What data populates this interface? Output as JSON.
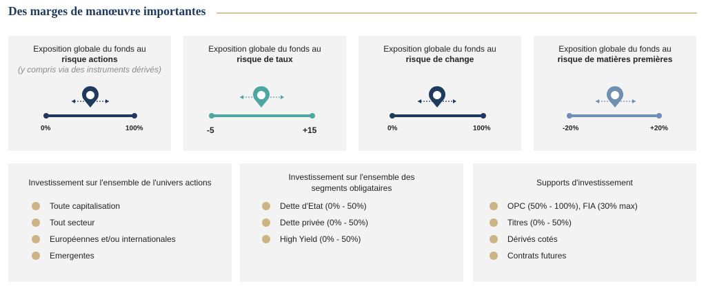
{
  "page": {
    "title": "Des marges de manœuvre importantes"
  },
  "colors": {
    "navy": "#1f3a5c",
    "teal": "#4ea6a1",
    "steel": "#6f8fb0",
    "gold": "#ccb484",
    "card_bg": "#f3f3f3",
    "rule": "#d8c39e"
  },
  "exposures": [
    {
      "line1": "Exposition globale du fonds au",
      "line2": "risque actions",
      "line3": "(y compris via des instruments dérivés)",
      "min": "0%",
      "max": "100%",
      "color": "#1f3a5c"
    },
    {
      "line1": "Exposition globale du fonds au",
      "line2": "risque de taux",
      "min": "-5",
      "max": "+15",
      "color": "#4ea6a1"
    },
    {
      "line1": "Exposition globale du fonds au",
      "line2": "risque de change",
      "min": "0%",
      "max": "100%",
      "color": "#1f3a5c"
    },
    {
      "line1": "Exposition globale du fonds au",
      "line2": "risque de matières premières",
      "min": "-20%",
      "max": "+20%",
      "color": "#6f8fb0"
    }
  ],
  "lists": [
    {
      "title_lines": [
        "Investissement sur l'ensemble de l'univers actions"
      ],
      "items": [
        "Toute capitalisation",
        "Tout secteur",
        "Européennes et/ou internationales",
        "Emergentes"
      ]
    },
    {
      "title_lines": [
        "Investissement sur l'ensemble des",
        "segments obligataires"
      ],
      "items": [
        "Dette d'Etat (0% - 50%)",
        "Dette privée (0% - 50%)",
        "High Yield (0% - 50%)"
      ]
    },
    {
      "title_lines": [
        "Supports d'investissement"
      ],
      "items": [
        "OPC (50% - 100%), FIA (30% max)",
        "Titres (0% - 50%)",
        "Dérivés cotés",
        "Contrats futures"
      ]
    }
  ]
}
